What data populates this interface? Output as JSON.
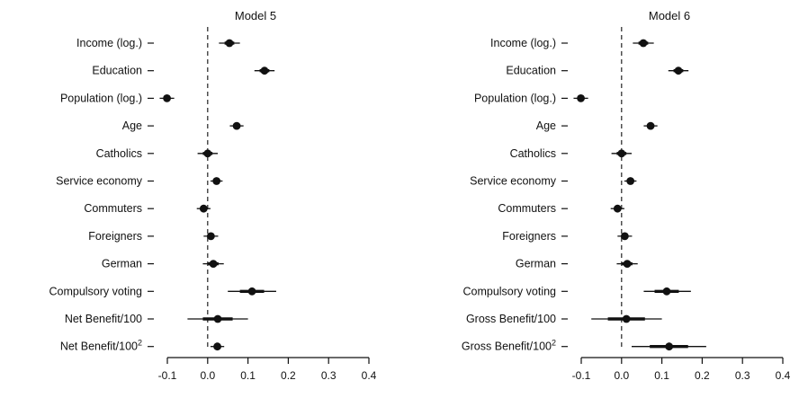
{
  "chart_data": [
    {
      "type": "coefficient-plot",
      "title": "Model 5",
      "xlim": [
        -0.1,
        0.4
      ],
      "xticks": [
        "-0.1",
        "0.0",
        "0.1",
        "0.2",
        "0.3",
        "0.4"
      ],
      "reference_line": 0,
      "rows": [
        {
          "label": "Income (log.)",
          "estimate": 0.054,
          "ci_outer": [
            0.028,
            0.08
          ],
          "ci_inner": [
            0.042,
            0.066
          ]
        },
        {
          "label": "Education",
          "estimate": 0.141,
          "ci_outer": [
            0.116,
            0.166
          ],
          "ci_inner": [
            0.129,
            0.153
          ]
        },
        {
          "label": "Population (log.)",
          "estimate": -0.101,
          "ci_outer": [
            -0.119,
            -0.083
          ],
          "ci_inner": [
            -0.11,
            -0.092
          ]
        },
        {
          "label": "Age",
          "estimate": 0.072,
          "ci_outer": [
            0.055,
            0.089
          ],
          "ci_inner": [
            0.064,
            0.081
          ]
        },
        {
          "label": "Catholics",
          "estimate": 0.0,
          "ci_outer": [
            -0.025,
            0.025
          ],
          "ci_inner": [
            -0.012,
            0.012
          ]
        },
        {
          "label": "Service economy",
          "estimate": 0.022,
          "ci_outer": [
            0.007,
            0.037
          ],
          "ci_inner": [
            0.015,
            0.029
          ]
        },
        {
          "label": "Commuters",
          "estimate": -0.01,
          "ci_outer": [
            -0.027,
            0.007
          ],
          "ci_inner": [
            -0.018,
            -0.002
          ]
        },
        {
          "label": "Foreigners",
          "estimate": 0.008,
          "ci_outer": [
            -0.01,
            0.026
          ],
          "ci_inner": [
            -0.001,
            0.017
          ]
        },
        {
          "label": "German",
          "estimate": 0.014,
          "ci_outer": [
            -0.012,
            0.04
          ],
          "ci_inner": [
            0.001,
            0.027
          ]
        },
        {
          "label": "Compulsory voting",
          "estimate": 0.11,
          "ci_outer": [
            0.05,
            0.17
          ],
          "ci_inner": [
            0.08,
            0.14
          ]
        },
        {
          "label": "Net Benefit/100",
          "estimate": 0.025,
          "ci_outer": [
            -0.05,
            0.1
          ],
          "ci_inner": [
            -0.012,
            0.062
          ]
        },
        {
          "label": "Net Benefit/100",
          "label_sup": "2",
          "estimate": 0.024,
          "ci_outer": [
            0.007,
            0.041
          ],
          "ci_inner": [
            0.016,
            0.032
          ]
        }
      ]
    },
    {
      "type": "coefficient-plot",
      "title": "Model 6",
      "xlim": [
        -0.1,
        0.4
      ],
      "xticks": [
        "-0.1",
        "0.0",
        "0.1",
        "0.2",
        "0.3",
        "0.4"
      ],
      "reference_line": 0,
      "rows": [
        {
          "label": "Income (log.)",
          "estimate": 0.054,
          "ci_outer": [
            0.028,
            0.08
          ],
          "ci_inner": [
            0.042,
            0.066
          ]
        },
        {
          "label": "Education",
          "estimate": 0.141,
          "ci_outer": [
            0.116,
            0.166
          ],
          "ci_inner": [
            0.129,
            0.153
          ]
        },
        {
          "label": "Population (log.)",
          "estimate": -0.101,
          "ci_outer": [
            -0.119,
            -0.083
          ],
          "ci_inner": [
            -0.11,
            -0.092
          ]
        },
        {
          "label": "Age",
          "estimate": 0.072,
          "ci_outer": [
            0.055,
            0.089
          ],
          "ci_inner": [
            0.064,
            0.081
          ]
        },
        {
          "label": "Catholics",
          "estimate": 0.0,
          "ci_outer": [
            -0.025,
            0.025
          ],
          "ci_inner": [
            -0.012,
            0.012
          ]
        },
        {
          "label": "Service economy",
          "estimate": 0.022,
          "ci_outer": [
            0.007,
            0.037
          ],
          "ci_inner": [
            0.015,
            0.029
          ]
        },
        {
          "label": "Commuters",
          "estimate": -0.01,
          "ci_outer": [
            -0.027,
            0.007
          ],
          "ci_inner": [
            -0.018,
            -0.002
          ]
        },
        {
          "label": "Foreigners",
          "estimate": 0.008,
          "ci_outer": [
            -0.01,
            0.026
          ],
          "ci_inner": [
            -0.001,
            0.017
          ]
        },
        {
          "label": "German",
          "estimate": 0.014,
          "ci_outer": [
            -0.012,
            0.04
          ],
          "ci_inner": [
            0.001,
            0.027
          ]
        },
        {
          "label": "Compulsory voting",
          "estimate": 0.112,
          "ci_outer": [
            0.055,
            0.172
          ],
          "ci_inner": [
            0.082,
            0.142
          ]
        },
        {
          "label": "Gross Benefit/100",
          "estimate": 0.012,
          "ci_outer": [
            -0.075,
            0.1
          ],
          "ci_inner": [
            -0.034,
            0.058
          ]
        },
        {
          "label": "Gross Benefit/100",
          "label_sup": "2",
          "estimate": 0.118,
          "ci_outer": [
            0.025,
            0.21
          ],
          "ci_inner": [
            0.07,
            0.165
          ]
        }
      ]
    }
  ],
  "colors": {
    "ink": "#111111",
    "reference_line": "#222222",
    "background": "#ffffff"
  }
}
